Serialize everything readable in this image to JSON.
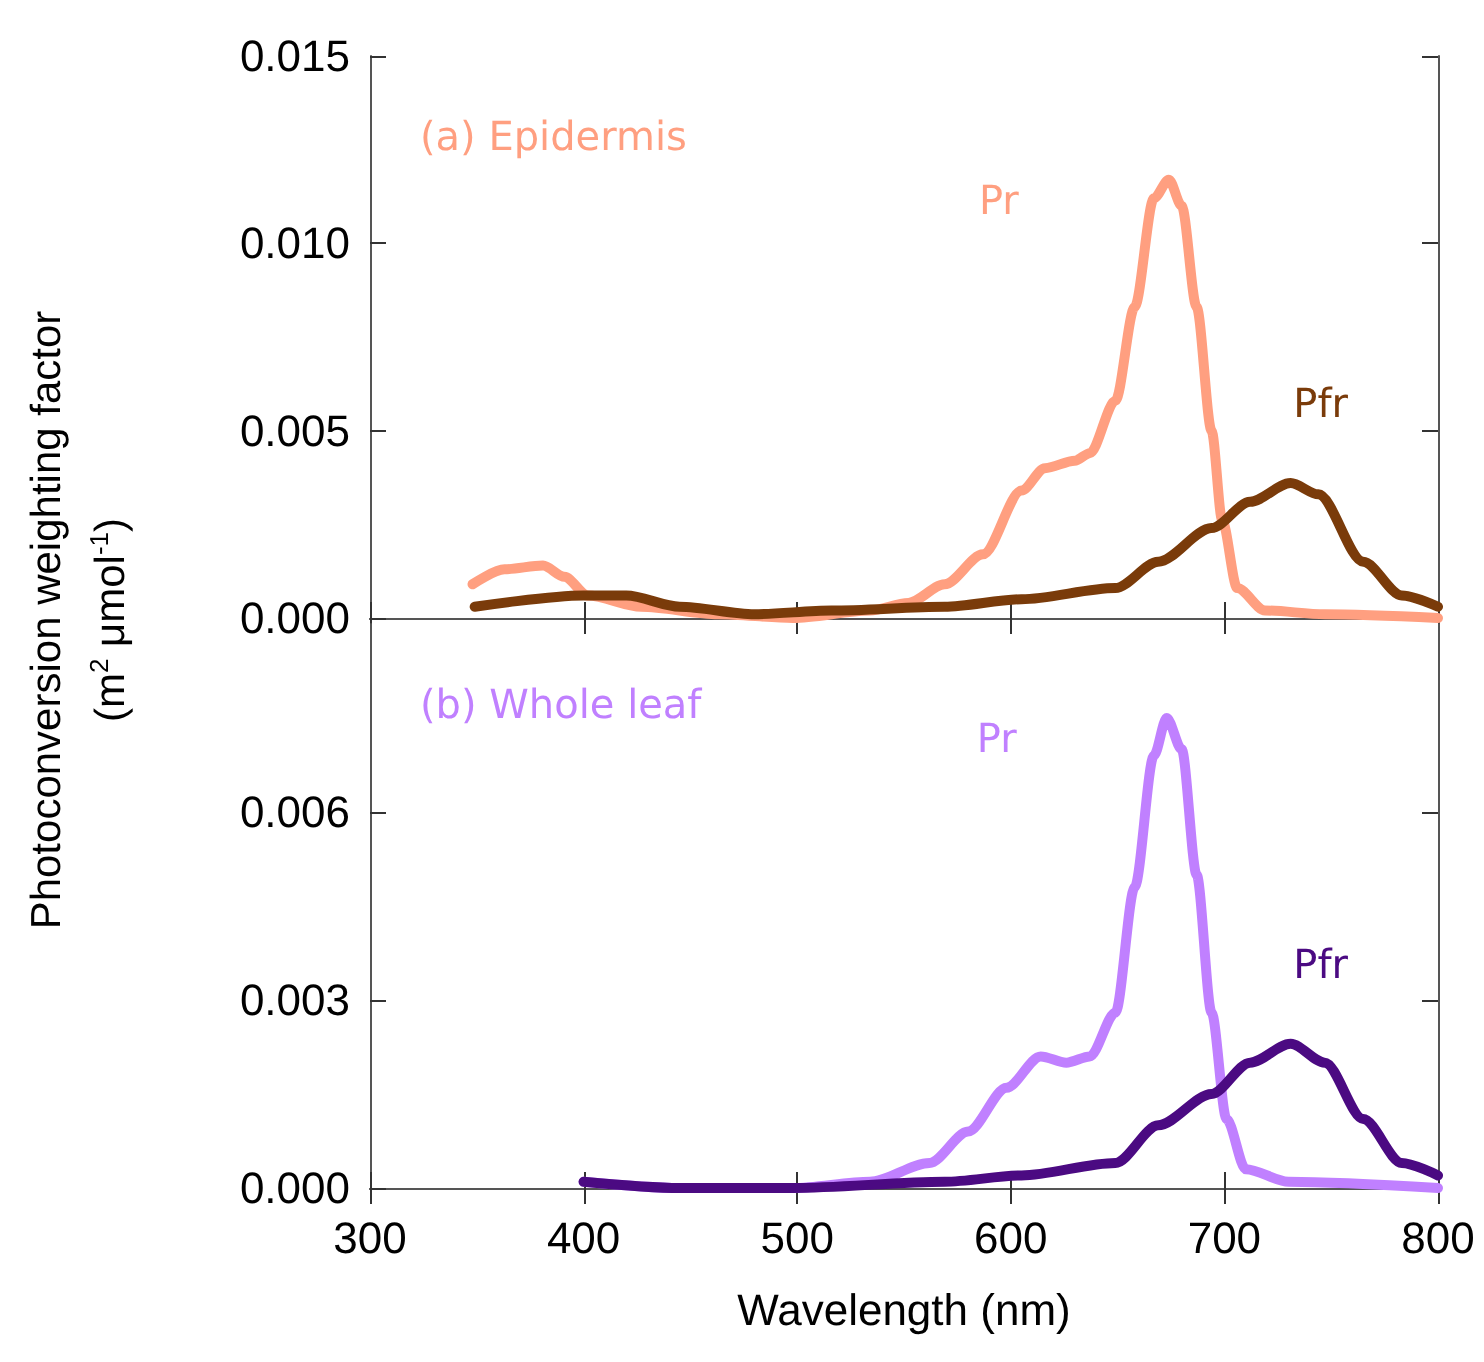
{
  "chart_data": [
    {
      "type": "line",
      "ylabel": "Photoconversion weighting factor (m$^{2}$ μmol$^{-1}$)",
      "annotations": [
        "(a) Epidermis"
      ],
      "xlim": [
        300,
        800
      ],
      "xticks": [
        300,
        400,
        500,
        600,
        700,
        800
      ],
      "ylim": [
        0,
        0.015
      ],
      "yticks": [
        {
          "value": 0,
          "label": "0.000"
        },
        {
          "value": 0.005,
          "label": "0.005"
        },
        {
          "value": 0.01,
          "label": "0.010"
        },
        {
          "value": 0.015,
          "label": "0.015"
        }
      ],
      "tick_labels": "y",
      "grid": false,
      "legend": false,
      "marker": "none",
      "line_style": "solid",
      "series": [
        {
          "name": "Pr",
          "color": "#ff9f80",
          "x": [
            348,
            363,
            381,
            391,
            402,
            427,
            463,
            498,
            534,
            552,
            569,
            587,
            605,
            616,
            630,
            637,
            649,
            658,
            667,
            674,
            680,
            687,
            694,
            699,
            706,
            719,
            747,
            800
          ],
          "values": [
            0.0009,
            0.0013,
            0.0014,
            0.0011,
            0.0006,
            0.0003,
            0.0001,
            0.0,
            0.0002,
            0.0004,
            0.0009,
            0.0017,
            0.0034,
            0.004,
            0.0042,
            0.0044,
            0.0058,
            0.0083,
            0.0112,
            0.0117,
            0.011,
            0.0083,
            0.005,
            0.0026,
            0.0008,
            0.0002,
            0.0001,
            0.0
          ]
        },
        {
          "name": "Pfr",
          "color": "#7a3b0a",
          "x": [
            349,
            400,
            409,
            420,
            445,
            480,
            516,
            569,
            605,
            649,
            669,
            694,
            712,
            731,
            744,
            765,
            783,
            800
          ],
          "values": [
            0.0003,
            0.0006,
            0.0006,
            0.0006,
            0.0003,
            0.0001,
            0.0002,
            0.0003,
            0.0005,
            0.0008,
            0.0015,
            0.0024,
            0.0031,
            0.0036,
            0.0033,
            0.0015,
            0.0006,
            0.0003
          ]
        }
      ]
    },
    {
      "type": "line",
      "xlabel": "Wavelength (nm)",
      "annotations": [
        "(b) Whole leaf"
      ],
      "xlim": [
        300,
        800
      ],
      "xticks": [
        300,
        400,
        500,
        600,
        700,
        800
      ],
      "ylim": [
        0,
        0.009
      ],
      "yticks": [
        {
          "value": 0,
          "label": "0.000"
        },
        {
          "value": 0.003,
          "label": "0.003"
        },
        {
          "value": 0.006,
          "label": "0.006"
        }
      ],
      "grid": false,
      "legend": false,
      "marker": "none",
      "line_style": "solid",
      "series": [
        {
          "name": "Pr",
          "color": "#c080ff",
          "x": [
            400,
            445,
            498,
            534,
            562,
            580,
            598,
            614,
            626,
            637,
            649,
            658,
            667,
            673,
            680,
            687,
            694,
            701,
            710,
            730,
            800
          ],
          "values": [
            0.0001,
            0.0,
            0.0,
            0.0001,
            0.0004,
            0.0009,
            0.0016,
            0.0021,
            0.002,
            0.0021,
            0.0028,
            0.0048,
            0.0069,
            0.0075,
            0.007,
            0.005,
            0.0028,
            0.0011,
            0.0003,
            0.0001,
            0.0
          ]
        },
        {
          "name": "Pfr",
          "color": "#4b0a82",
          "x": [
            400,
            445,
            498,
            569,
            605,
            649,
            669,
            694,
            712,
            731,
            747,
            765,
            783,
            800
          ],
          "values": [
            0.0001,
            0.0,
            0.0,
            0.0001,
            0.0002,
            0.0004,
            0.001,
            0.0015,
            0.002,
            0.0023,
            0.002,
            0.0011,
            0.0004,
            0.0002
          ]
        }
      ]
    }
  ]
}
